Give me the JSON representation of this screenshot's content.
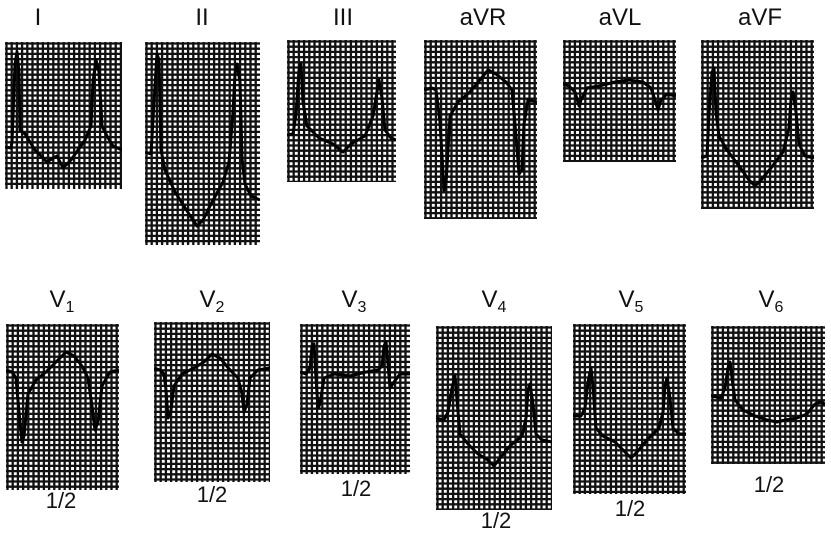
{
  "limb_leads": [
    {
      "id": "lead-i",
      "label": "I"
    },
    {
      "id": "lead-ii",
      "label": "II"
    },
    {
      "id": "lead-iii",
      "label": "III"
    },
    {
      "id": "lead-avr",
      "label": "aVR"
    },
    {
      "id": "lead-avl",
      "label": "aVL"
    },
    {
      "id": "lead-avf",
      "label": "aVF"
    }
  ],
  "chest_leads": [
    {
      "id": "lead-v1",
      "base": "V",
      "sub": "1",
      "scale": "1/2"
    },
    {
      "id": "lead-v2",
      "base": "V",
      "sub": "2",
      "scale": "1/2"
    },
    {
      "id": "lead-v3",
      "base": "V",
      "sub": "3",
      "scale": "1/2"
    },
    {
      "id": "lead-v4",
      "base": "V",
      "sub": "4",
      "scale": "1/2"
    },
    {
      "id": "lead-v5",
      "base": "V",
      "sub": "5",
      "scale": "1/2"
    },
    {
      "id": "lead-v6",
      "base": "V",
      "sub": "6",
      "scale": "1/2"
    }
  ],
  "colors": {
    "grid": "#111111",
    "paper": "#ffffff",
    "trace": "#000000"
  }
}
